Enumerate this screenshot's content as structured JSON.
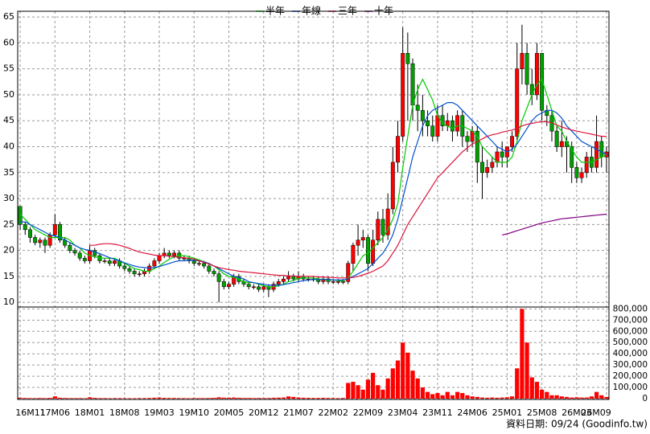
{
  "chart_data": {
    "type": "candlestick",
    "categories": [
      "16M11",
      null,
      null,
      null,
      null,
      null,
      null,
      "17M06",
      null,
      null,
      null,
      null,
      null,
      null,
      "18M01",
      null,
      null,
      null,
      null,
      null,
      null,
      "18M08",
      null,
      null,
      null,
      null,
      null,
      null,
      "19M03",
      null,
      null,
      null,
      null,
      null,
      null,
      "19M10",
      null,
      null,
      null,
      null,
      null,
      null,
      "20M05",
      null,
      null,
      null,
      null,
      null,
      null,
      "20M12",
      null,
      null,
      null,
      null,
      null,
      null,
      "21M07",
      null,
      null,
      null,
      null,
      null,
      null,
      "22M02",
      null,
      null,
      null,
      null,
      null,
      null,
      "22M09",
      null,
      null,
      null,
      null,
      null,
      null,
      "23M04",
      null,
      null,
      null,
      null,
      null,
      null,
      "23M11",
      null,
      null,
      null,
      null,
      null,
      null,
      "24M06",
      null,
      null,
      null,
      null,
      null,
      null,
      "25M01",
      null,
      null,
      null,
      null,
      null,
      null,
      "25M08",
      null,
      null,
      null,
      null,
      null,
      null,
      "26M03",
      null,
      null,
      null,
      null,
      null,
      "26M09"
    ],
    "open": [
      28.5,
      25,
      24,
      22.5,
      21.5,
      22,
      21,
      23,
      25,
      22,
      21,
      20,
      19.5,
      18.5,
      18,
      20,
      19,
      18,
      18,
      17.5,
      18,
      17,
      16.5,
      16,
      15.5,
      15.5,
      16,
      17,
      18,
      19,
      19.5,
      19,
      19.5,
      18.5,
      18.5,
      18,
      17.5,
      17.5,
      17,
      16,
      15.5,
      14,
      13,
      13.5,
      15,
      14,
      13.5,
      13,
      13,
      12.5,
      13,
      12.5,
      13.5,
      14,
      14.5,
      15,
      14.5,
      15,
      14.5,
      14.5,
      14.5,
      14,
      14.5,
      14,
      14,
      14,
      14,
      17.5,
      21,
      22,
      22.5,
      17.5,
      22,
      26,
      23,
      28,
      37,
      42,
      58,
      56,
      48,
      47,
      45,
      44,
      42,
      46,
      44,
      45,
      43,
      46,
      42,
      41,
      43,
      37,
      35,
      36,
      37,
      39,
      38,
      40,
      42,
      55,
      58,
      52,
      50,
      58,
      47,
      46,
      43,
      40,
      41,
      40,
      36,
      34,
      35,
      38,
      36,
      41,
      38
    ],
    "high": [
      28.5,
      25.5,
      24.5,
      23,
      22.5,
      22.5,
      23.5,
      27,
      25.5,
      22.5,
      21.5,
      20.5,
      20,
      19,
      21,
      20.5,
      19.5,
      18.5,
      18.5,
      18.5,
      18.5,
      17.5,
      17,
      16.5,
      16,
      16.5,
      17.5,
      18.5,
      19.5,
      20.5,
      20,
      20,
      20,
      19,
      19,
      18.5,
      18,
      18,
      17.5,
      16.5,
      16,
      14.5,
      14,
      15.5,
      15.5,
      14.5,
      14,
      13.5,
      13.5,
      13.5,
      13.5,
      14,
      14.5,
      15,
      16,
      15.5,
      16,
      15.5,
      15,
      15,
      15,
      15,
      15,
      14.5,
      14.5,
      14.5,
      18,
      21.5,
      25,
      24,
      23,
      24,
      27.5,
      28,
      31,
      40,
      45,
      63,
      62,
      57,
      52,
      50,
      47,
      46,
      48,
      48,
      46.5,
      46,
      47,
      47,
      43,
      44,
      44,
      40,
      37.5,
      38,
      40,
      41,
      40,
      43,
      60,
      63.5,
      60,
      55,
      60,
      58,
      48,
      47,
      44,
      45,
      42,
      41,
      37,
      36,
      39,
      40,
      46,
      42,
      40
    ],
    "low": [
      24,
      23,
      21.5,
      21,
      20.5,
      19.5,
      20.5,
      22.5,
      21.5,
      20.5,
      19.5,
      19,
      18,
      17.5,
      17.5,
      18.5,
      17.5,
      17.5,
      17,
      17,
      16.5,
      16,
      15.5,
      15,
      15,
      15,
      15.5,
      16.5,
      17.5,
      18.5,
      18.5,
      18.5,
      18,
      18,
      17.5,
      17,
      17,
      16.5,
      15.5,
      15,
      10,
      12.5,
      12.5,
      13,
      13.5,
      13,
      12.5,
      12.5,
      12,
      12,
      11,
      12,
      13,
      13.5,
      14,
      14,
      14,
      14,
      14,
      14,
      13.5,
      13.5,
      13.5,
      13.5,
      13.5,
      13.5,
      13.5,
      16,
      19,
      20.5,
      16,
      17,
      21,
      21.5,
      22,
      27,
      35,
      41,
      45,
      45,
      43,
      42,
      42,
      41,
      41,
      43,
      43,
      41,
      42,
      40,
      39,
      40,
      33,
      30,
      34,
      35,
      36,
      36,
      36,
      39,
      41,
      52,
      50,
      48,
      49,
      45,
      44,
      41,
      39,
      38,
      35,
      33,
      33,
      33,
      34,
      35,
      35,
      36,
      35
    ],
    "close": [
      25,
      24,
      22.5,
      21.5,
      22,
      21,
      23,
      25,
      22,
      21,
      20,
      19.5,
      18.5,
      18,
      20,
      19,
      18,
      18,
      17.5,
      18,
      17,
      16.5,
      16,
      15.5,
      15.5,
      16,
      17,
      18,
      19,
      19.5,
      19,
      19.5,
      18.5,
      18.5,
      18,
      17.5,
      17.5,
      17,
      16,
      15.5,
      14,
      13,
      13.5,
      15,
      14,
      13.5,
      13,
      13,
      12.5,
      13,
      12.5,
      13.5,
      14,
      14.5,
      15,
      14.5,
      15,
      14.5,
      14.5,
      14.5,
      14,
      14.5,
      14,
      14,
      14,
      14,
      17.5,
      21,
      22,
      22.5,
      17.5,
      22,
      26,
      23,
      28,
      37,
      42,
      58,
      56,
      48,
      47,
      45,
      44,
      42,
      46,
      44,
      45,
      43,
      46,
      42,
      41,
      43,
      37,
      35,
      36,
      37,
      39,
      38,
      40,
      42,
      55,
      58,
      52,
      50,
      58,
      47,
      46,
      43,
      40,
      41,
      40,
      36,
      34,
      35,
      38,
      36,
      41,
      38,
      39
    ],
    "up_color": "#ff0000",
    "down_color": "#00a000",
    "wick_color": "#000000",
    "ylim": [
      9.1,
      66.1
    ],
    "yticks": [
      10,
      15,
      20,
      25,
      30,
      35,
      40,
      45,
      50,
      55,
      60,
      65
    ],
    "grid": true,
    "series": [
      {
        "name": "半年",
        "color": "#00cc00",
        "values": [
          27,
          26,
          25,
          24,
          23.5,
          23,
          22.5,
          22.5,
          22.5,
          22.5,
          22,
          21,
          20.5,
          19.5,
          19,
          18.8,
          18.6,
          18.5,
          18.5,
          18.5,
          18,
          17.5,
          17,
          16.5,
          16.3,
          16,
          16,
          16.5,
          17,
          17.7,
          18.3,
          18.8,
          19,
          19,
          18.8,
          18.5,
          18.2,
          17.8,
          17.5,
          17,
          16.3,
          15.5,
          15,
          14.8,
          14.5,
          14,
          13.8,
          13.8,
          13.5,
          13.2,
          13,
          13,
          13.2,
          13.5,
          14,
          14.2,
          14.6,
          14.7,
          14.7,
          14.7,
          14.5,
          14.4,
          14.3,
          14.3,
          14.2,
          14.1,
          14.7,
          16,
          17.5,
          19,
          19.5,
          20.5,
          21.5,
          22.5,
          24,
          26,
          29,
          36,
          42,
          48,
          51,
          53,
          51,
          49,
          46,
          44.5,
          44,
          43.5,
          44,
          44,
          43.5,
          43,
          42,
          40,
          39,
          38,
          37,
          37,
          37,
          38,
          41,
          45,
          47.5,
          50,
          52,
          53,
          50,
          47,
          44,
          43,
          41,
          39.5,
          38,
          37,
          37,
          37,
          37.5,
          38,
          38.5
        ]
      },
      {
        "name": "年線",
        "color": "#0050d0",
        "values": [
          25.5,
          25.5,
          25,
          24.5,
          24,
          23.5,
          23,
          22.8,
          22.5,
          22,
          21.5,
          21,
          20.5,
          20.2,
          20,
          19.7,
          19.4,
          19,
          18.6,
          18.3,
          18,
          17.6,
          17.3,
          17,
          16.8,
          16.7,
          16.6,
          16.7,
          16.9,
          17.2,
          17.5,
          17.8,
          18,
          18,
          18.1,
          18.1,
          18,
          17.8,
          17.5,
          17,
          16.5,
          16,
          15.5,
          15,
          14.8,
          14.5,
          14,
          13.8,
          13.6,
          13.5,
          13.3,
          13.3,
          13.3,
          13.4,
          13.6,
          13.8,
          14,
          14.2,
          14.3,
          14.4,
          14.4,
          14.4,
          14.4,
          14.3,
          14.3,
          14.3,
          14.5,
          15,
          15.5,
          16,
          16.5,
          17.5,
          18.5,
          19.5,
          21,
          23,
          26,
          30,
          34,
          38,
          41,
          44,
          46,
          47,
          47.5,
          48,
          48.5,
          48.5,
          48,
          47,
          46,
          45,
          44,
          43,
          42,
          41,
          40,
          39.5,
          39,
          39.5,
          40.5,
          42,
          43.5,
          45,
          46,
          46.5,
          47,
          47,
          46.5,
          45.5,
          44,
          43,
          42,
          41,
          40.5,
          40,
          39.5,
          39,
          38.5
        ]
      },
      {
        "name": "三年",
        "color": "#dc143c",
        "values": [
          null,
          null,
          null,
          null,
          null,
          null,
          null,
          null,
          null,
          null,
          null,
          null,
          null,
          null,
          21,
          21,
          21.2,
          21.3,
          21.3,
          21.2,
          21,
          20.7,
          20.4,
          20,
          19.7,
          19.5,
          19.3,
          19.1,
          19,
          19,
          18.9,
          18.8,
          18.7,
          18.6,
          18.5,
          18.3,
          18,
          17.7,
          17.4,
          17,
          16.7,
          16.5,
          16.3,
          16.2,
          16,
          15.9,
          15.8,
          15.7,
          15.6,
          15.5,
          15.4,
          15.3,
          15.2,
          15.2,
          15.1,
          15.1,
          15,
          15,
          15,
          15,
          14.9,
          14.9,
          14.8,
          14.8,
          14.7,
          14.7,
          14.7,
          14.8,
          15,
          15.3,
          15.6,
          16,
          16.5,
          17,
          18,
          19.5,
          21,
          23,
          25,
          26.5,
          28,
          29.5,
          31,
          32.5,
          34,
          35,
          36,
          37,
          38,
          39,
          39.8,
          40.5,
          41,
          41.5,
          42,
          42.3,
          42.5,
          42.8,
          43,
          43.2,
          43.5,
          44,
          44.3,
          44.5,
          44.7,
          44.8,
          44.8,
          44.6,
          44.2,
          43.8,
          43.5,
          43.2,
          43,
          42.8,
          42.6,
          42.4,
          42.2,
          42,
          42
        ]
      },
      {
        "name": "十年",
        "color": "#800080",
        "values": [
          null,
          null,
          null,
          null,
          null,
          null,
          null,
          null,
          null,
          null,
          null,
          null,
          null,
          null,
          null,
          null,
          null,
          null,
          null,
          null,
          null,
          null,
          null,
          null,
          null,
          null,
          null,
          null,
          null,
          null,
          null,
          null,
          null,
          null,
          null,
          null,
          null,
          null,
          null,
          null,
          null,
          null,
          null,
          null,
          null,
          null,
          null,
          null,
          null,
          null,
          null,
          null,
          null,
          null,
          null,
          null,
          null,
          null,
          null,
          null,
          null,
          null,
          null,
          null,
          null,
          null,
          null,
          null,
          null,
          null,
          null,
          null,
          null,
          null,
          null,
          null,
          null,
          null,
          null,
          null,
          null,
          null,
          null,
          null,
          null,
          null,
          null,
          null,
          null,
          null,
          null,
          null,
          null,
          null,
          null,
          null,
          null,
          23,
          23.2,
          23.5,
          23.8,
          24.1,
          24.4,
          24.7,
          25,
          25.3,
          25.5,
          25.7,
          25.9,
          26.1,
          26.2,
          26.3,
          26.4,
          26.5,
          26.6,
          26.7,
          26.8,
          26.9,
          27
        ]
      }
    ],
    "volume": {
      "color": "#ff0000",
      "values": [
        8000,
        6000,
        5000,
        5000,
        6000,
        5000,
        7000,
        20000,
        8000,
        6000,
        5000,
        5000,
        5000,
        4000,
        12000,
        7000,
        5000,
        5000,
        4000,
        5000,
        5000,
        4000,
        4000,
        4000,
        5000,
        5000,
        6000,
        8000,
        10000,
        7000,
        6000,
        6000,
        5000,
        5000,
        4000,
        5000,
        5000,
        5000,
        6000,
        7000,
        12000,
        9000,
        8000,
        10000,
        8000,
        6000,
        6000,
        5000,
        6000,
        5000,
        6000,
        8000,
        9000,
        10000,
        20000,
        15000,
        10000,
        8000,
        7000,
        6000,
        6000,
        7000,
        6000,
        5000,
        5000,
        6000,
        140000,
        150000,
        120000,
        80000,
        170000,
        230000,
        120000,
        80000,
        180000,
        270000,
        340000,
        500000,
        410000,
        250000,
        180000,
        100000,
        60000,
        40000,
        50000,
        30000,
        60000,
        30000,
        60000,
        50000,
        30000,
        20000,
        15000,
        10000,
        8000,
        10000,
        8000,
        10000,
        12000,
        20000,
        270000,
        800000,
        500000,
        190000,
        150000,
        80000,
        60000,
        30000,
        30000,
        20000,
        15000,
        10000,
        12000,
        10000,
        10000,
        20000,
        60000,
        30000,
        15000
      ],
      "ylim": [
        0,
        810000
      ],
      "yticks": [
        0,
        {
          "value": 100000,
          "label": "100,000"
        },
        {
          "value": 200000,
          "label": "200,000"
        },
        {
          "value": 300000,
          "label": "300,000"
        },
        {
          "value": 400000,
          "label": "400,000"
        },
        {
          "value": 500000,
          "label": "500,000"
        },
        {
          "value": 600000,
          "label": "600,000"
        },
        {
          "value": 700000,
          "label": "700,000"
        },
        {
          "value": 800000,
          "label": "800,000"
        }
      ]
    },
    "footer": "資料日期: 09/24  (Goodinfo.tw)"
  }
}
